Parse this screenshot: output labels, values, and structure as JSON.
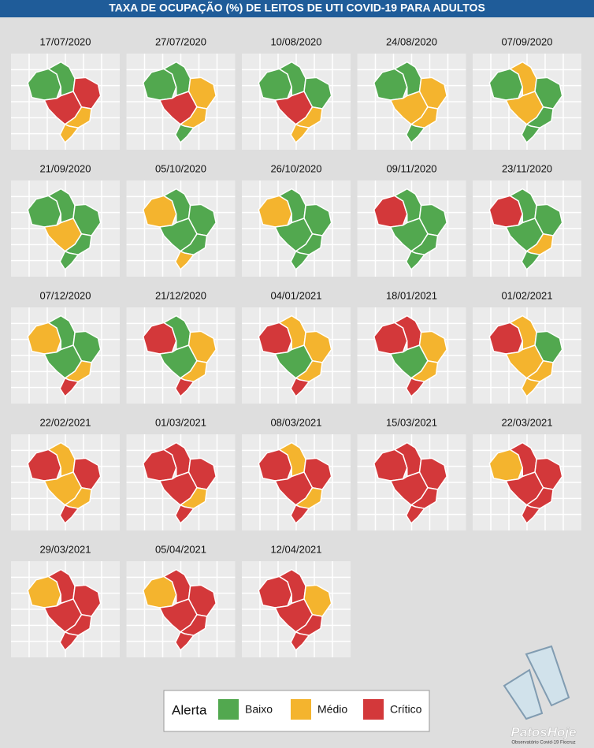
{
  "title": "TAXA DE OCUPAÇÃO (%) DE LEITOS DE UTI COVID-19 PARA ADULTOS",
  "legend": {
    "title": "Alerta",
    "items": [
      {
        "label": "Baixo",
        "color": "#52a84f"
      },
      {
        "label": "Médio",
        "color": "#f4b42e"
      },
      {
        "label": "Crítico",
        "color": "#d3383a"
      }
    ]
  },
  "panels": [
    {
      "date": "17/07/2020",
      "colors": [
        "#52a84f",
        "#52a84f",
        "#d3383a",
        "#d3383a",
        "#f4b42e",
        "#f4b42e"
      ]
    },
    {
      "date": "27/07/2020",
      "colors": [
        "#52a84f",
        "#52a84f",
        "#f4b42e",
        "#d3383a",
        "#f4b42e",
        "#52a84f"
      ]
    },
    {
      "date": "10/08/2020",
      "colors": [
        "#52a84f",
        "#52a84f",
        "#52a84f",
        "#d3383a",
        "#f4b42e",
        "#f4b42e"
      ]
    },
    {
      "date": "24/08/2020",
      "colors": [
        "#52a84f",
        "#52a84f",
        "#f4b42e",
        "#f4b42e",
        "#f4b42e",
        "#52a84f"
      ]
    },
    {
      "date": "07/09/2020",
      "colors": [
        "#52a84f",
        "#f4b42e",
        "#52a84f",
        "#f4b42e",
        "#52a84f",
        "#52a84f"
      ]
    },
    {
      "date": "21/09/2020",
      "colors": [
        "#52a84f",
        "#52a84f",
        "#52a84f",
        "#f4b42e",
        "#52a84f",
        "#52a84f"
      ]
    },
    {
      "date": "05/10/2020",
      "colors": [
        "#f4b42e",
        "#52a84f",
        "#52a84f",
        "#52a84f",
        "#52a84f",
        "#f4b42e"
      ]
    },
    {
      "date": "26/10/2020",
      "colors": [
        "#f4b42e",
        "#52a84f",
        "#52a84f",
        "#52a84f",
        "#52a84f",
        "#52a84f"
      ]
    },
    {
      "date": "09/11/2020",
      "colors": [
        "#d3383a",
        "#52a84f",
        "#52a84f",
        "#52a84f",
        "#52a84f",
        "#52a84f"
      ]
    },
    {
      "date": "23/11/2020",
      "colors": [
        "#d3383a",
        "#52a84f",
        "#52a84f",
        "#52a84f",
        "#f4b42e",
        "#52a84f"
      ]
    },
    {
      "date": "07/12/2020",
      "colors": [
        "#f4b42e",
        "#52a84f",
        "#52a84f",
        "#52a84f",
        "#f4b42e",
        "#d3383a"
      ]
    },
    {
      "date": "21/12/2020",
      "colors": [
        "#d3383a",
        "#52a84f",
        "#f4b42e",
        "#52a84f",
        "#f4b42e",
        "#d3383a"
      ]
    },
    {
      "date": "04/01/2021",
      "colors": [
        "#d3383a",
        "#f4b42e",
        "#f4b42e",
        "#52a84f",
        "#f4b42e",
        "#d3383a"
      ]
    },
    {
      "date": "18/01/2021",
      "colors": [
        "#d3383a",
        "#d3383a",
        "#f4b42e",
        "#52a84f",
        "#f4b42e",
        "#d3383a"
      ]
    },
    {
      "date": "01/02/2021",
      "colors": [
        "#d3383a",
        "#f4b42e",
        "#52a84f",
        "#f4b42e",
        "#f4b42e",
        "#f4b42e"
      ]
    },
    {
      "date": "22/02/2021",
      "colors": [
        "#d3383a",
        "#f4b42e",
        "#d3383a",
        "#f4b42e",
        "#f4b42e",
        "#d3383a"
      ]
    },
    {
      "date": "01/03/2021",
      "colors": [
        "#d3383a",
        "#d3383a",
        "#d3383a",
        "#d3383a",
        "#f4b42e",
        "#d3383a"
      ]
    },
    {
      "date": "08/03/2021",
      "colors": [
        "#d3383a",
        "#f4b42e",
        "#d3383a",
        "#d3383a",
        "#f4b42e",
        "#d3383a"
      ]
    },
    {
      "date": "15/03/2021",
      "colors": [
        "#d3383a",
        "#d3383a",
        "#d3383a",
        "#d3383a",
        "#d3383a",
        "#d3383a"
      ]
    },
    {
      "date": "22/03/2021",
      "colors": [
        "#f4b42e",
        "#d3383a",
        "#d3383a",
        "#d3383a",
        "#d3383a",
        "#d3383a"
      ]
    },
    {
      "date": "29/03/2021",
      "colors": [
        "#f4b42e",
        "#d3383a",
        "#d3383a",
        "#d3383a",
        "#d3383a",
        "#d3383a"
      ]
    },
    {
      "date": "05/04/2021",
      "colors": [
        "#f4b42e",
        "#d3383a",
        "#d3383a",
        "#d3383a",
        "#d3383a",
        "#d3383a"
      ]
    },
    {
      "date": "12/04/2021",
      "colors": [
        "#d3383a",
        "#d3383a",
        "#f4b42e",
        "#d3383a",
        "#d3383a",
        "#d3383a"
      ]
    }
  ],
  "source": "Observatório Covid-19 Fiocruz",
  "watermark": "PatosHoje"
}
